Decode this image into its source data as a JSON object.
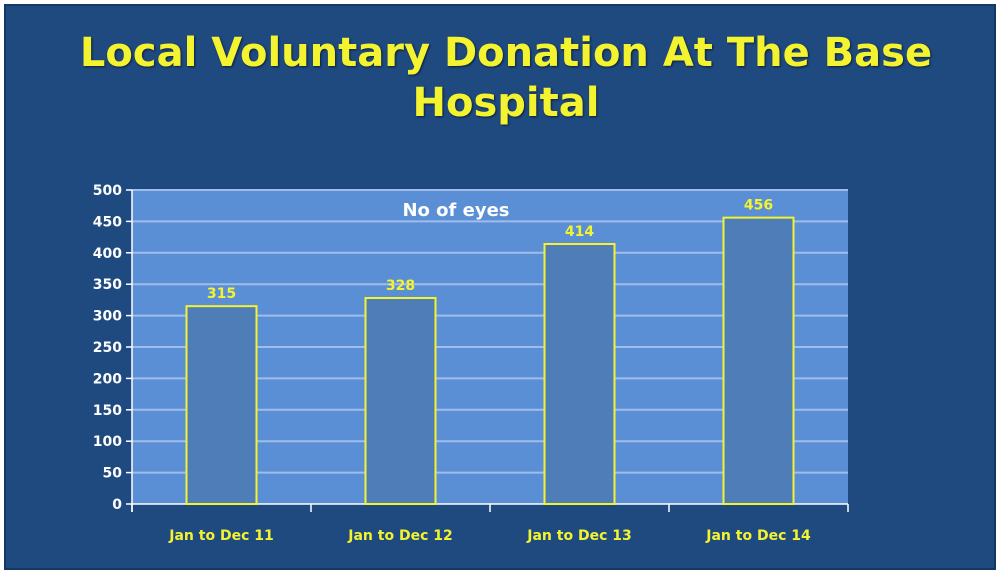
{
  "colors": {
    "background": "#1f4a80",
    "plot_area": "#5a8fd6",
    "bar_fill": "#4f7db8",
    "bar_outline": "#f4f32f",
    "title": "#f4f32f",
    "gridline": "#9fbde8"
  },
  "chart_data": {
    "type": "bar",
    "title": "Local Voluntary Donation At The Base Hospital",
    "categories": [
      "Jan to Dec 11",
      "Jan to Dec 12",
      "Jan to Dec 13",
      "Jan to Dec 14"
    ],
    "series": [
      {
        "name": "No of eyes",
        "values": [
          315,
          328,
          414,
          456
        ]
      }
    ],
    "xlabel": "",
    "ylabel": "",
    "ylim": [
      0,
      500
    ],
    "yticks": [
      0,
      50,
      100,
      150,
      200,
      250,
      300,
      350,
      400,
      450,
      500
    ],
    "grid": true,
    "legend": "none",
    "data_labels": true
  }
}
